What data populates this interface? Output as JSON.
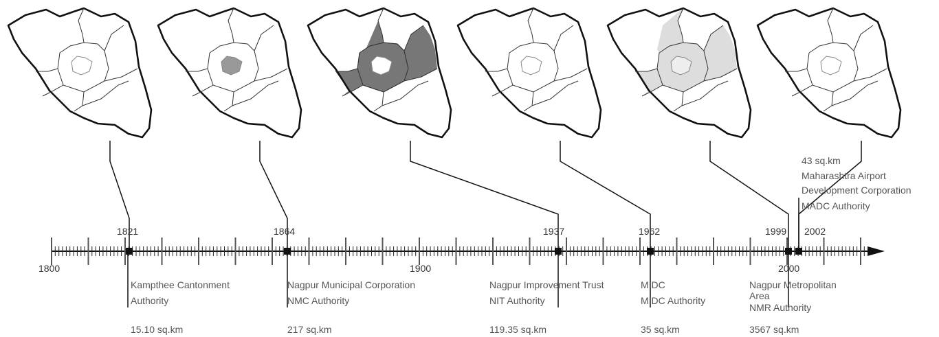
{
  "timeline": {
    "axis_labels": [
      "1800",
      "1900",
      "2000"
    ],
    "events": [
      {
        "year": "1821",
        "name_lines": [
          "Kampthee Cantonment",
          "Authority"
        ],
        "area": "15.10 sq.km"
      },
      {
        "year": "1864",
        "name_lines": [
          "Nagpur Municipal Corporation",
          "NMC Authority"
        ],
        "area": "217 sq.km"
      },
      {
        "year": "1937",
        "name_lines": [
          "Nagpur Improvement Trust",
          "NIT Authority"
        ],
        "area": "119.35 sq.km"
      },
      {
        "year": "1962",
        "name_lines": [
          "MIDC",
          "MIDC Authority"
        ],
        "area": "35 sq.km"
      },
      {
        "year": "1999",
        "name_lines": [
          "Nagpur Metropolitan",
          "Area",
          "NMR Authority"
        ],
        "area": "3567 sq.km"
      },
      {
        "year": "2002",
        "name_lines": [
          "Maharashtra Airport",
          "Development Corporation",
          "MADC Authority"
        ],
        "area": "43 sq.km"
      }
    ]
  },
  "maps": [
    {
      "highlight": "none"
    },
    {
      "highlight": "core"
    },
    {
      "highlight": "ring"
    },
    {
      "highlight": "none"
    },
    {
      "highlight": "ring"
    },
    {
      "highlight": "none"
    }
  ],
  "colors": {
    "outline": "#111111",
    "dark_fill": "#777777",
    "light_fill": "#dddddd",
    "core_fill": "#999999"
  }
}
